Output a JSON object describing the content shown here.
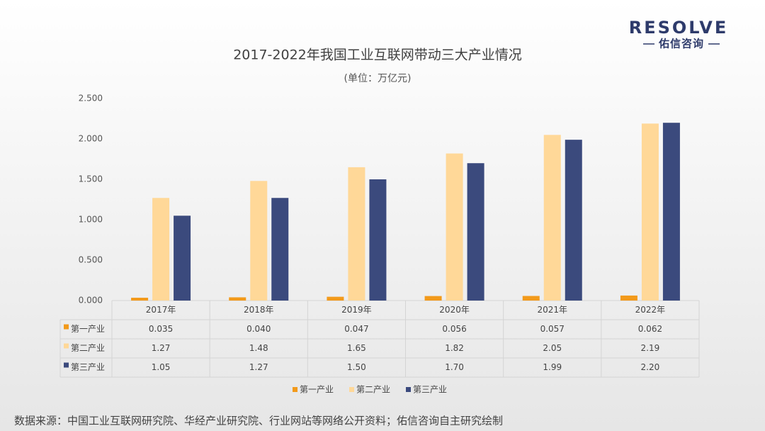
{
  "logo": {
    "name": "RESOLVE",
    "tagline": "佑信咨询"
  },
  "chart_data": {
    "type": "bar",
    "title": "2017-2022年我国工业互联网带动三大产业情况",
    "subtitle": "(单位：万亿元)",
    "categories": [
      "2017年",
      "2018年",
      "2019年",
      "2020年",
      "2021年",
      "2022年"
    ],
    "series": [
      {
        "name": "第一产业",
        "color": "#F29A1B",
        "values": [
          0.035,
          0.04,
          0.047,
          0.056,
          0.057,
          0.062
        ],
        "value_labels": [
          "0.035",
          "0.040",
          "0.047",
          "0.056",
          "0.057",
          "0.062"
        ]
      },
      {
        "name": "第二产业",
        "color": "#FFD898",
        "values": [
          1.27,
          1.48,
          1.65,
          1.82,
          2.05,
          2.19
        ],
        "value_labels": [
          "1.27",
          "1.48",
          "1.65",
          "1.82",
          "2.05",
          "2.19"
        ]
      },
      {
        "name": "第三产业",
        "color": "#3B4A7D",
        "values": [
          1.05,
          1.27,
          1.5,
          1.7,
          1.99,
          2.2
        ],
        "value_labels": [
          "1.05",
          "1.27",
          "1.50",
          "1.70",
          "1.99",
          "2.20"
        ]
      }
    ],
    "ylim": [
      0,
      2.5
    ],
    "yticks": [
      {
        "value": 0,
        "label": "0.000"
      },
      {
        "value": 0.5,
        "label": "0.500"
      },
      {
        "value": 1,
        "label": "1.000"
      },
      {
        "value": 1.5,
        "label": "1.500"
      },
      {
        "value": 2,
        "label": "2.000"
      },
      {
        "value": 2.5,
        "label": "2.500"
      }
    ],
    "grid": false,
    "legend": "bottom",
    "source": "数据来源：中国工业互联网研究院、华经产业研究院、行业网站等网络公开资料；佑信咨询自主研究绘制"
  }
}
